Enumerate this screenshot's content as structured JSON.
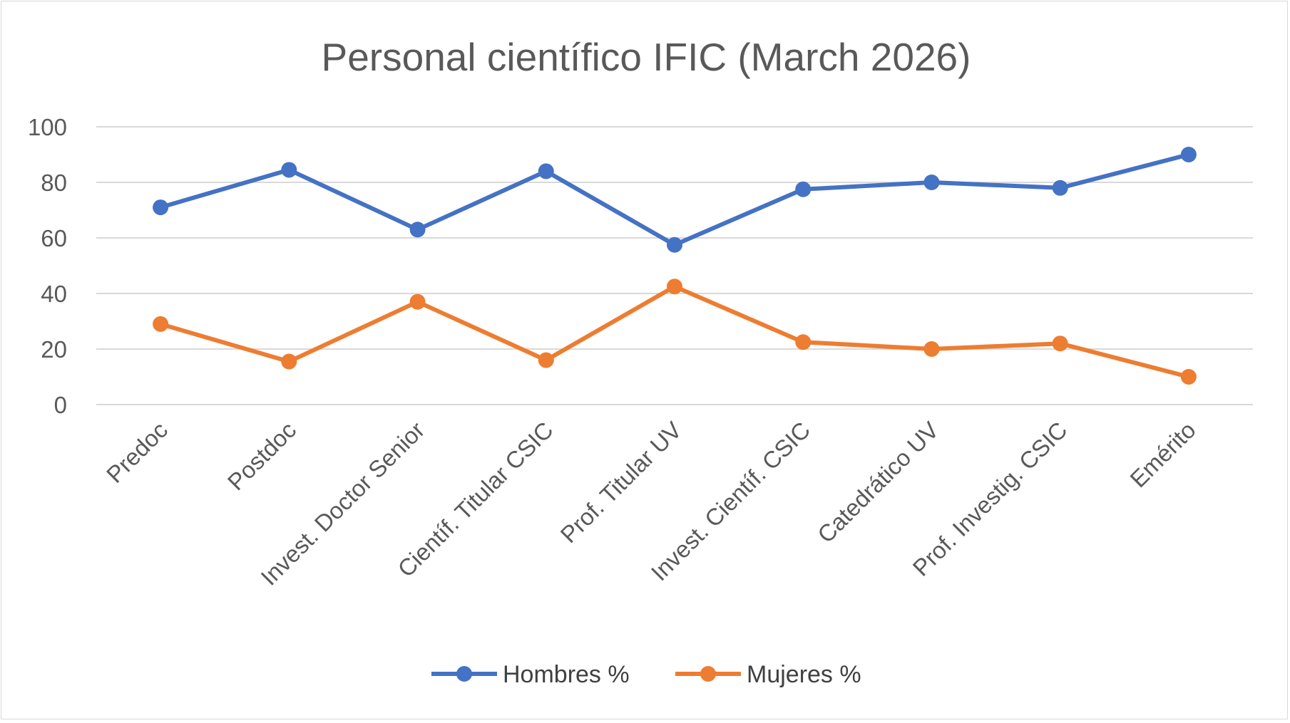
{
  "chart_data": {
    "type": "line",
    "title": "Personal científico IFIC (March 2026)",
    "xlabel": "",
    "ylabel": "",
    "ylim": [
      0,
      100
    ],
    "y_ticks": [
      0,
      20,
      40,
      60,
      80,
      100
    ],
    "grid": true,
    "legend_position": "bottom",
    "categories": [
      "Predoc",
      "Postdoc",
      "Invest. Doctor Senior",
      "Científ. Titular CSIC",
      "Prof. Titular UV",
      "Invest. Científ. CSIC",
      "Catedrático UV",
      "Prof. Investig. CSIC",
      "Emérito"
    ],
    "series": [
      {
        "name": "Hombres %",
        "color": "#4472c4",
        "values": [
          71,
          84.5,
          63,
          84,
          57.5,
          77.5,
          80,
          78,
          90
        ]
      },
      {
        "name": "Mujeres %",
        "color": "#ed7d31",
        "values": [
          29,
          15.5,
          37,
          16,
          42.5,
          22.5,
          20,
          22,
          10
        ]
      }
    ]
  }
}
